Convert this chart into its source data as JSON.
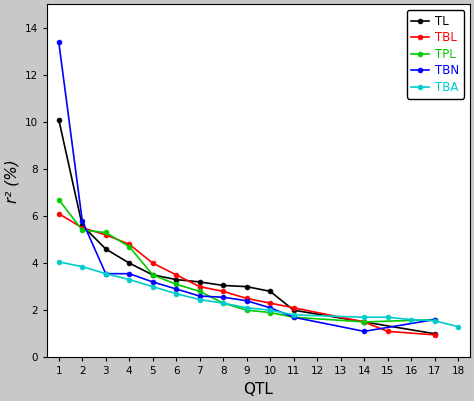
{
  "title": "",
  "xlabel": "QTL",
  "ylabel": "r² (%)",
  "xlim": [
    0.5,
    18.5
  ],
  "ylim": [
    0,
    15
  ],
  "yticks": [
    0,
    2,
    4,
    6,
    8,
    10,
    12,
    14
  ],
  "xticks": [
    1,
    2,
    3,
    4,
    5,
    6,
    7,
    8,
    9,
    10,
    11,
    12,
    13,
    14,
    15,
    16,
    17,
    18
  ],
  "background_color": "#c8c8c8",
  "plot_bg_color": "#ffffff",
  "series": [
    {
      "label": "TL",
      "color": "#000000",
      "x": [
        1,
        2,
        3,
        4,
        5,
        6,
        7,
        8,
        9,
        10,
        11,
        14,
        17
      ],
      "y": [
        10.1,
        5.6,
        4.6,
        4.0,
        3.5,
        3.3,
        3.2,
        3.05,
        3.0,
        2.8,
        2.0,
        1.5,
        1.0
      ]
    },
    {
      "label": "TBL",
      "color": "#ff0000",
      "x": [
        1,
        2,
        3,
        4,
        5,
        6,
        7,
        8,
        9,
        10,
        11,
        14,
        15,
        17
      ],
      "y": [
        6.1,
        5.5,
        5.2,
        4.8,
        4.0,
        3.5,
        3.0,
        2.8,
        2.5,
        2.3,
        2.1,
        1.5,
        1.1,
        0.95
      ]
    },
    {
      "label": "TPL",
      "color": "#00cc00",
      "x": [
        1,
        2,
        3,
        4,
        5,
        6,
        7,
        8,
        9,
        10,
        11,
        14,
        17
      ],
      "y": [
        6.7,
        5.4,
        5.3,
        4.7,
        3.5,
        3.1,
        2.8,
        2.3,
        2.0,
        1.9,
        1.7,
        1.5,
        1.6
      ]
    },
    {
      "label": "TBN",
      "color": "#0000ff",
      "x": [
        1,
        2,
        3,
        4,
        5,
        6,
        7,
        8,
        9,
        10,
        11,
        14,
        17
      ],
      "y": [
        13.4,
        5.8,
        3.55,
        3.55,
        3.2,
        2.9,
        2.6,
        2.55,
        2.4,
        2.1,
        1.7,
        1.1,
        1.6
      ]
    },
    {
      "label": "TBA",
      "color": "#00cccc",
      "x": [
        1,
        2,
        3,
        4,
        5,
        6,
        7,
        8,
        9,
        10,
        11,
        14,
        15,
        16,
        17,
        18
      ],
      "y": [
        4.05,
        3.85,
        3.55,
        3.3,
        3.0,
        2.7,
        2.45,
        2.3,
        2.1,
        2.0,
        1.8,
        1.7,
        1.7,
        1.6,
        1.55,
        1.3
      ]
    }
  ]
}
